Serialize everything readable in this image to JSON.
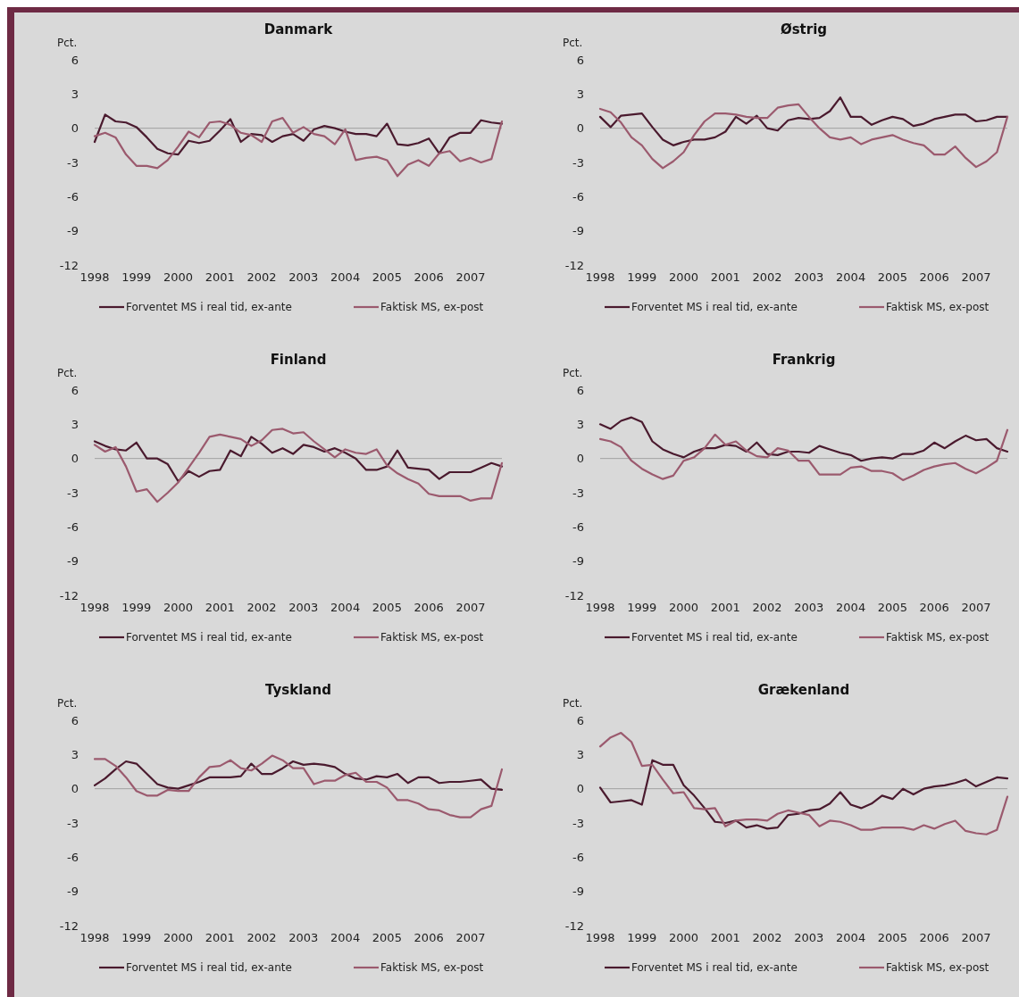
{
  "chart_data": [
    {
      "type": "line",
      "title": "Danmark",
      "ylabel": "Pct.",
      "categories": [
        "1998",
        null,
        null,
        null,
        "1999",
        null,
        null,
        null,
        "2000",
        null,
        null,
        null,
        "2001",
        null,
        null,
        null,
        "2002",
        null,
        null,
        null,
        "2003",
        null,
        null,
        null,
        "2004",
        null,
        null,
        null,
        "2005",
        null,
        null,
        null,
        "2006",
        null,
        null,
        null,
        "2007",
        null,
        null,
        null
      ],
      "ylim": [
        -12,
        6
      ],
      "yticks": [
        -12,
        -9,
        -6,
        -3,
        0,
        3,
        6
      ],
      "legend": "bottom",
      "series": [
        {
          "name": "Forventet MS i real tid, ex-ante",
          "color": "#4a1a2e",
          "values": [
            -1.2,
            1.2,
            0.6,
            0.5,
            0.1,
            -0.8,
            -1.8,
            -2.2,
            -2.3,
            -1.1,
            -1.3,
            -1.1,
            -0.2,
            0.8,
            -1.2,
            -0.5,
            -0.6,
            -1.2,
            -0.7,
            -0.5,
            -1.1,
            -0.1,
            0.2,
            0,
            -0.3,
            -0.5,
            -0.5,
            -0.7,
            0.4,
            -1.4,
            -1.5,
            -1.3,
            -0.9,
            -2.2,
            -0.8,
            -0.4,
            -0.4,
            0.7,
            0.5,
            0.4
          ]
        },
        {
          "name": "Faktisk MS, ex-post",
          "color": "#9b5a6e",
          "values": [
            -0.7,
            -0.4,
            -0.8,
            -2.3,
            -3.3,
            -3.3,
            -3.5,
            -2.8,
            -1.6,
            -0.3,
            -0.8,
            0.5,
            0.6,
            0.3,
            -0.4,
            -0.6,
            -1.2,
            0.6,
            0.9,
            -0.4,
            0.1,
            -0.5,
            -0.7,
            -1.4,
            -0.1,
            -2.8,
            -2.6,
            -2.5,
            -2.8,
            -4.2,
            -3.2,
            -2.8,
            -3.3,
            -2.2,
            -2.0,
            -2.9,
            -2.6,
            -3.0,
            -2.7,
            0.6
          ]
        }
      ]
    },
    {
      "type": "line",
      "title": "Østrig",
      "ylabel": "Pct.",
      "categories": [
        "1998",
        null,
        null,
        null,
        "1999",
        null,
        null,
        null,
        "2000",
        null,
        null,
        null,
        "2001",
        null,
        null,
        null,
        "2002",
        null,
        null,
        null,
        "2003",
        null,
        null,
        null,
        "2004",
        null,
        null,
        null,
        "2005",
        null,
        null,
        null,
        "2006",
        null,
        null,
        null,
        "2007",
        null,
        null,
        null
      ],
      "ylim": [
        -12,
        6
      ],
      "yticks": [
        -12,
        -9,
        -6,
        -3,
        0,
        3,
        6
      ],
      "legend": "bottom",
      "series": [
        {
          "name": "Forventet MS i real tid, ex-ante",
          "color": "#4a1a2e",
          "values": [
            1.0,
            0.1,
            1.1,
            1.2,
            1.3,
            0.1,
            -1.0,
            -1.5,
            -1.2,
            -1.0,
            -1.0,
            -0.8,
            -0.3,
            1.0,
            0.4,
            1.1,
            0.0,
            -0.2,
            0.7,
            0.9,
            0.8,
            0.9,
            1.5,
            2.7,
            1.0,
            1.0,
            0.3,
            0.7,
            1.0,
            0.8,
            0.2,
            0.4,
            0.8,
            1.0,
            1.2,
            1.2,
            0.6,
            0.7,
            1.0,
            1.0
          ]
        },
        {
          "name": "Faktisk MS, ex-post",
          "color": "#9b5a6e",
          "values": [
            1.7,
            1.4,
            0.5,
            -0.8,
            -1.5,
            -2.7,
            -3.5,
            -2.9,
            -2.1,
            -0.6,
            0.6,
            1.3,
            1.3,
            1.2,
            1.0,
            0.9,
            0.9,
            1.8,
            2.0,
            2.1,
            1.0,
            0.0,
            -0.8,
            -1.0,
            -0.8,
            -1.4,
            -1.0,
            -0.8,
            -0.6,
            -1.0,
            -1.3,
            -1.5,
            -2.3,
            -2.3,
            -1.6,
            -2.6,
            -3.4,
            -2.9,
            -2.1,
            1.0
          ]
        }
      ]
    },
    {
      "type": "line",
      "title": "Finland",
      "ylabel": "Pct.",
      "categories": [
        "1998",
        null,
        null,
        null,
        "1999",
        null,
        null,
        null,
        "2000",
        null,
        null,
        null,
        "2001",
        null,
        null,
        null,
        "2002",
        null,
        null,
        null,
        "2003",
        null,
        null,
        null,
        "2004",
        null,
        null,
        null,
        "2005",
        null,
        null,
        null,
        "2006",
        null,
        null,
        null,
        "2007",
        null,
        null,
        null
      ],
      "ylim": [
        -12,
        6
      ],
      "yticks": [
        -12,
        -9,
        -6,
        -3,
        0,
        3,
        6
      ],
      "legend": "bottom",
      "series": [
        {
          "name": "Forventet MS i real tid, ex-ante",
          "color": "#4a1a2e",
          "values": [
            1.5,
            1.1,
            0.8,
            0.7,
            1.4,
            0.0,
            0.0,
            -0.5,
            -2.0,
            -1.1,
            -1.6,
            -1.1,
            -1.0,
            0.7,
            0.2,
            1.9,
            1.3,
            0.5,
            0.9,
            0.4,
            1.2,
            1.0,
            0.6,
            0.9,
            0.5,
            0.0,
            -1.0,
            -1.0,
            -0.7,
            0.7,
            -0.8,
            -0.9,
            -1.0,
            -1.8,
            -1.2,
            -1.2,
            -1.2,
            -0.8,
            -0.4,
            -0.7
          ]
        },
        {
          "name": "Faktisk MS, ex-post",
          "color": "#9b5a6e",
          "values": [
            1.2,
            0.6,
            1.0,
            -0.7,
            -2.9,
            -2.7,
            -3.8,
            -3.0,
            -2.1,
            -0.8,
            0.5,
            1.9,
            2.1,
            1.9,
            1.7,
            1.1,
            1.6,
            2.5,
            2.6,
            2.2,
            2.3,
            1.5,
            0.8,
            0.1,
            0.8,
            0.5,
            0.4,
            0.8,
            -0.6,
            -1.3,
            -1.8,
            -2.2,
            -3.1,
            -3.3,
            -3.3,
            -3.3,
            -3.7,
            -3.5,
            -3.5,
            -0.4
          ]
        }
      ]
    },
    {
      "type": "line",
      "title": "Frankrig",
      "ylabel": "Pct.",
      "categories": [
        "1998",
        null,
        null,
        null,
        "1999",
        null,
        null,
        null,
        "2000",
        null,
        null,
        null,
        "2001",
        null,
        null,
        null,
        "2002",
        null,
        null,
        null,
        "2003",
        null,
        null,
        null,
        "2004",
        null,
        null,
        null,
        "2005",
        null,
        null,
        null,
        "2006",
        null,
        null,
        null,
        "2007",
        null,
        null,
        null
      ],
      "ylim": [
        -12,
        6
      ],
      "yticks": [
        -12,
        -9,
        -6,
        -3,
        0,
        3,
        6
      ],
      "legend": "bottom",
      "series": [
        {
          "name": "Forventet MS i real tid, ex-ante",
          "color": "#4a1a2e",
          "values": [
            3.0,
            2.6,
            3.3,
            3.6,
            3.2,
            1.5,
            0.8,
            0.4,
            0.1,
            0.6,
            0.9,
            0.9,
            1.2,
            1.1,
            0.6,
            1.4,
            0.4,
            0.3,
            0.6,
            0.6,
            0.5,
            1.1,
            0.8,
            0.5,
            0.3,
            -0.2,
            0.0,
            0.1,
            0.0,
            0.4,
            0.4,
            0.7,
            1.4,
            0.9,
            1.5,
            2.0,
            1.6,
            1.7,
            0.9,
            0.6
          ]
        },
        {
          "name": "Faktisk MS, ex-post",
          "color": "#9b5a6e",
          "values": [
            1.7,
            1.5,
            1.0,
            -0.2,
            -0.9,
            -1.4,
            -1.8,
            -1.5,
            -0.2,
            0.1,
            0.9,
            2.1,
            1.2,
            1.5,
            0.7,
            0.2,
            0.1,
            0.9,
            0.7,
            -0.2,
            -0.2,
            -1.4,
            -1.4,
            -1.4,
            -0.8,
            -0.7,
            -1.1,
            -1.1,
            -1.3,
            -1.9,
            -1.5,
            -1.0,
            -0.7,
            -0.5,
            -0.4,
            -0.9,
            -1.3,
            -0.8,
            -0.2,
            2.5
          ]
        }
      ]
    },
    {
      "type": "line",
      "title": "Tyskland",
      "ylabel": "Pct.",
      "categories": [
        "1998",
        null,
        null,
        null,
        "1999",
        null,
        null,
        null,
        "2000",
        null,
        null,
        null,
        "2001",
        null,
        null,
        null,
        "2002",
        null,
        null,
        null,
        "2003",
        null,
        null,
        null,
        "2004",
        null,
        null,
        null,
        "2005",
        null,
        null,
        null,
        "2006",
        null,
        null,
        null,
        "2007",
        null,
        null,
        null
      ],
      "ylim": [
        -12,
        6
      ],
      "yticks": [
        -12,
        -9,
        -6,
        -3,
        0,
        3,
        6
      ],
      "legend": "bottom",
      "series": [
        {
          "name": "Forventet MS i real tid, ex-ante",
          "color": "#4a1a2e",
          "values": [
            0.3,
            0.9,
            1.7,
            2.4,
            2.2,
            1.3,
            0.4,
            0.1,
            0.0,
            0.3,
            0.6,
            1.0,
            1.0,
            1.0,
            1.1,
            2.2,
            1.3,
            1.3,
            1.8,
            2.4,
            2.1,
            2.2,
            2.1,
            1.9,
            1.3,
            0.9,
            0.8,
            1.1,
            1.0,
            1.3,
            0.5,
            1.0,
            1.0,
            0.5,
            0.6,
            0.6,
            0.7,
            0.8,
            0.0,
            -0.1
          ]
        },
        {
          "name": "Faktisk MS, ex-post",
          "color": "#9b5a6e",
          "values": [
            2.6,
            2.6,
            2.0,
            1.0,
            -0.2,
            -0.6,
            -0.6,
            -0.1,
            -0.2,
            -0.2,
            1.0,
            1.9,
            2.0,
            2.5,
            1.8,
            1.6,
            2.2,
            2.9,
            2.5,
            1.8,
            1.8,
            0.4,
            0.7,
            0.7,
            1.2,
            1.4,
            0.6,
            0.6,
            0.1,
            -1.0,
            -1.0,
            -1.3,
            -1.8,
            -1.9,
            -2.3,
            -2.5,
            -2.5,
            -1.8,
            -1.5,
            1.7
          ]
        }
      ]
    },
    {
      "type": "line",
      "title": "Grækenland",
      "ylabel": "Pct.",
      "categories": [
        "1998",
        null,
        null,
        null,
        "1999",
        null,
        null,
        null,
        "2000",
        null,
        null,
        null,
        "2001",
        null,
        null,
        null,
        "2002",
        null,
        null,
        null,
        "2003",
        null,
        null,
        null,
        "2004",
        null,
        null,
        null,
        "2005",
        null,
        null,
        null,
        "2006",
        null,
        null,
        null,
        "2007",
        null,
        null,
        null
      ],
      "ylim": [
        -12,
        6
      ],
      "yticks": [
        -12,
        -9,
        -6,
        -3,
        0,
        3,
        6
      ],
      "legend": "bottom",
      "series": [
        {
          "name": "Forventet MS i real tid, ex-ante",
          "color": "#4a1a2e",
          "values": [
            0.1,
            -1.2,
            -1.1,
            -1.0,
            -1.4,
            2.5,
            2.1,
            2.1,
            0.3,
            -0.6,
            -1.7,
            -2.9,
            -3.0,
            -2.8,
            -3.4,
            -3.2,
            -3.5,
            -3.4,
            -2.3,
            -2.2,
            -1.9,
            -1.8,
            -1.3,
            -0.3,
            -1.4,
            -1.7,
            -1.3,
            -0.6,
            -0.9,
            0.0,
            -0.5,
            0.0,
            0.2,
            0.3,
            0.5,
            0.8,
            0.2,
            0.6,
            1.0,
            0.9
          ]
        },
        {
          "name": "Faktisk MS, ex-post",
          "color": "#9b5a6e",
          "values": [
            3.7,
            4.5,
            4.9,
            4.1,
            2.0,
            2.1,
            0.8,
            -0.4,
            -0.3,
            -1.7,
            -1.8,
            -1.7,
            -3.3,
            -2.8,
            -2.7,
            -2.7,
            -2.8,
            -2.2,
            -1.9,
            -2.1,
            -2.3,
            -3.3,
            -2.8,
            -2.9,
            -3.2,
            -3.6,
            -3.6,
            -3.4,
            -3.4,
            -3.4,
            -3.6,
            -3.2,
            -3.5,
            -3.1,
            -2.8,
            -3.7,
            -3.9,
            -4.0,
            -3.6,
            -0.7
          ]
        }
      ]
    }
  ]
}
